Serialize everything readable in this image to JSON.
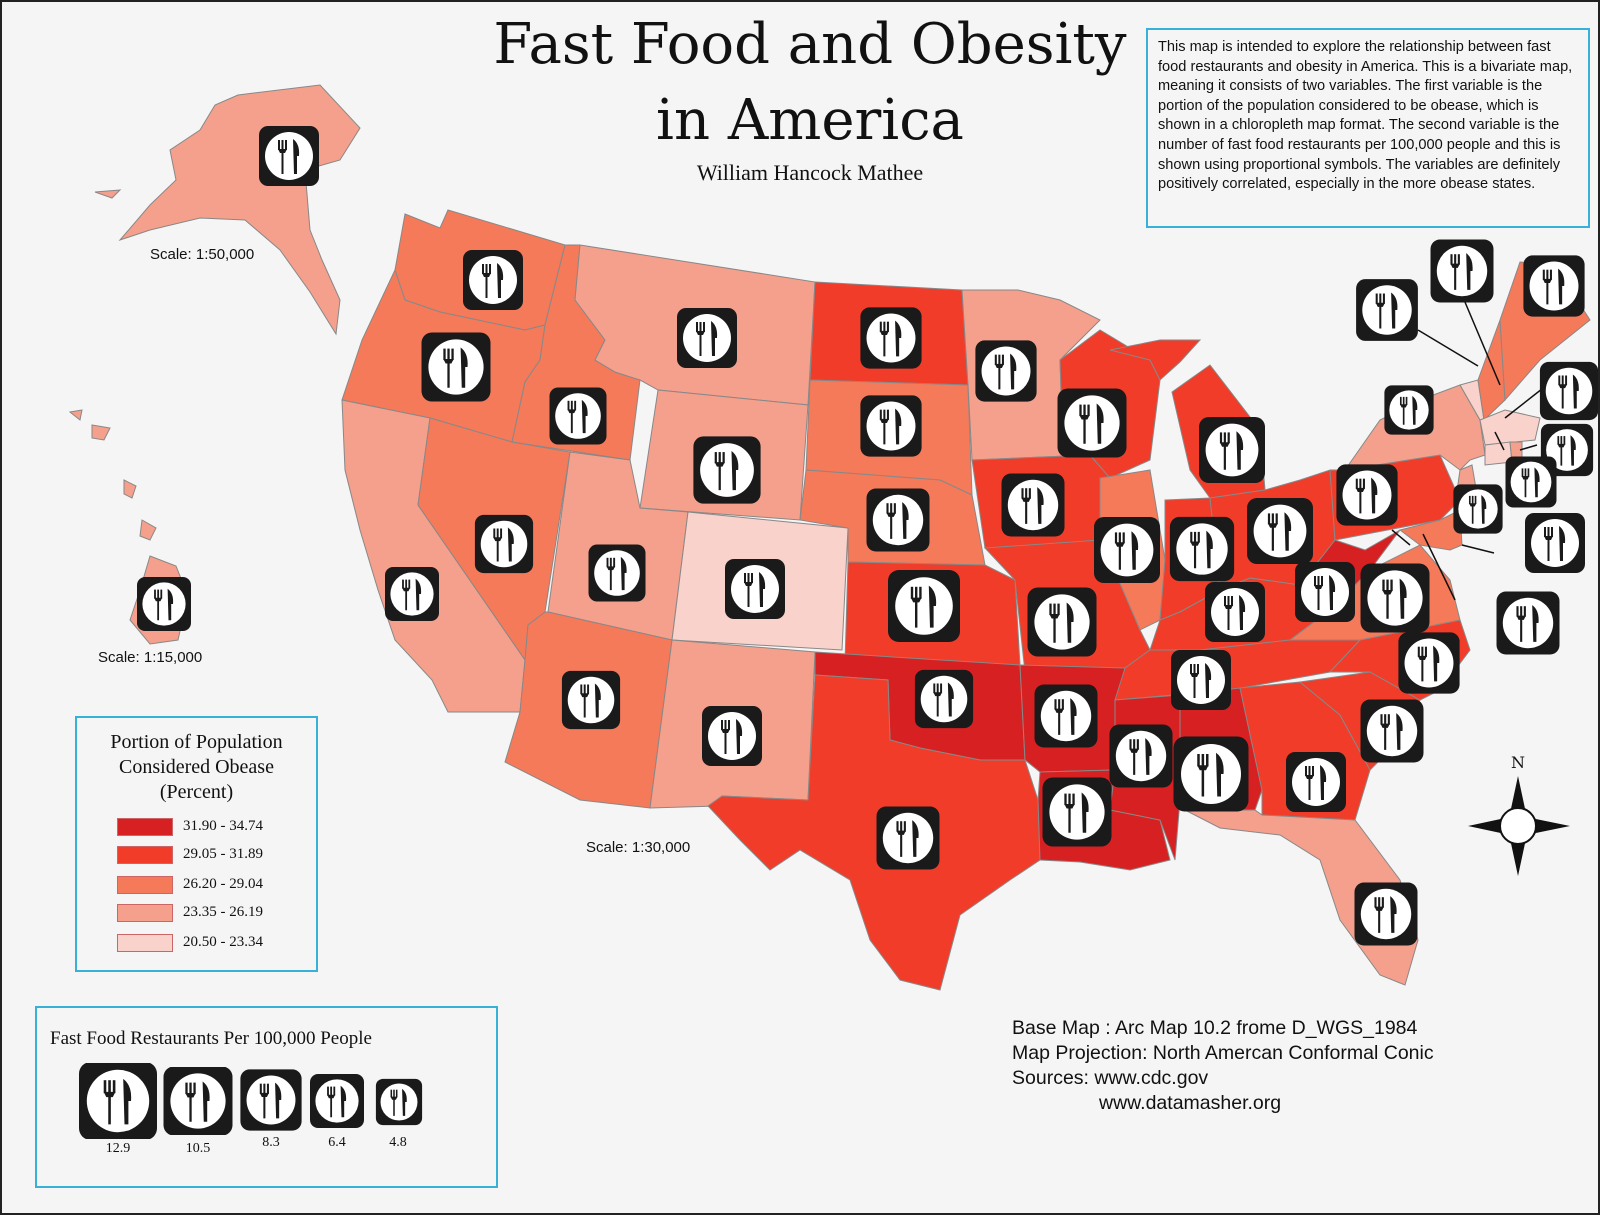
{
  "title": {
    "line1": "Fast Food and Obesity",
    "line2": "in America"
  },
  "author": "William Hancock Mathee",
  "description": "This map is intended to explore the relationship between fast food restaurants and obesity in America.  This is a bivariate map, meaning it consists of two variables.  The first variable is the portion of the population considered to be obease, which is shown in a chloropleth map format.  The second variable is the number of fast food restaurants per 100,000 people and this is shown using proportional symbols.  The variables are definitely positively correlated, especially in the more obease states.",
  "scales": {
    "alaska": "Scale: 1:50,000",
    "hawaii": "Scale: 1:15,000",
    "mainland": "Scale: 1:30,000"
  },
  "legend_obesity": {
    "title_lines": [
      "Portion of Population",
      "Considered Obease",
      "(Percent)"
    ],
    "classes": [
      {
        "label": "31.90 - 34.74",
        "color": "#d72022"
      },
      {
        "label": "29.05 - 31.89",
        "color": "#f03c28"
      },
      {
        "label": "26.20 - 29.04",
        "color": "#f47a5a"
      },
      {
        "label": "23.35 - 26.19",
        "color": "#f4a08c"
      },
      {
        "label": "20.50 - 23.34",
        "color": "#f8d2cb"
      }
    ]
  },
  "legend_fastfood": {
    "title": "Fast Food Restaurants Per 100,000 People",
    "sizes": [
      "12.9",
      "10.5",
      "8.3",
      "6.4",
      "4.8"
    ],
    "icon": "fork-knife-plate-icon"
  },
  "credits": {
    "base_map": "Base Map : Arc Map 10.2 frome D_WGS_1984",
    "projection": "Map Projection: North Amercan Conformal Conic",
    "sources": "Sources: www.cdc.gov",
    "sources2": "www.datamasher.org"
  },
  "compass": {
    "north": "N"
  },
  "states": [
    {
      "name": "Washington",
      "class": 2
    },
    {
      "name": "Oregon",
      "class": 2
    },
    {
      "name": "California",
      "class": 3
    },
    {
      "name": "Idaho",
      "class": 2
    },
    {
      "name": "Nevada",
      "class": 2
    },
    {
      "name": "Montana",
      "class": 3
    },
    {
      "name": "Wyoming",
      "class": 3
    },
    {
      "name": "Utah",
      "class": 3
    },
    {
      "name": "Colorado",
      "class": 4
    },
    {
      "name": "Arizona",
      "class": 2
    },
    {
      "name": "New Mexico",
      "class": 3
    },
    {
      "name": "North Dakota",
      "class": 1
    },
    {
      "name": "South Dakota",
      "class": 2
    },
    {
      "name": "Nebraska",
      "class": 2
    },
    {
      "name": "Kansas",
      "class": 1
    },
    {
      "name": "Oklahoma",
      "class": 0
    },
    {
      "name": "Texas",
      "class": 1
    },
    {
      "name": "Minnesota",
      "class": 3
    },
    {
      "name": "Iowa",
      "class": 1
    },
    {
      "name": "Missouri",
      "class": 1
    },
    {
      "name": "Arkansas",
      "class": 0
    },
    {
      "name": "Louisiana",
      "class": 0
    },
    {
      "name": "Wisconsin",
      "class": 1
    },
    {
      "name": "Illinois",
      "class": 2
    },
    {
      "name": "Michigan",
      "class": 1
    },
    {
      "name": "Indiana",
      "class": 1
    },
    {
      "name": "Ohio",
      "class": 1
    },
    {
      "name": "Kentucky",
      "class": 1
    },
    {
      "name": "Tennessee",
      "class": 1
    },
    {
      "name": "Mississippi",
      "class": 0
    },
    {
      "name": "Alabama",
      "class": 0
    },
    {
      "name": "Georgia",
      "class": 1
    },
    {
      "name": "Florida",
      "class": 3
    },
    {
      "name": "South Carolina",
      "class": 1
    },
    {
      "name": "North Carolina",
      "class": 1
    },
    {
      "name": "Virginia",
      "class": 2
    },
    {
      "name": "West Virginia",
      "class": 0
    },
    {
      "name": "Pennsylvania",
      "class": 1
    },
    {
      "name": "New York",
      "class": 3
    },
    {
      "name": "Maine",
      "class": 2
    },
    {
      "name": "Vermont",
      "class": 4
    },
    {
      "name": "New Hampshire",
      "class": 2
    },
    {
      "name": "Massachusetts",
      "class": 4
    },
    {
      "name": "Connecticut",
      "class": 4
    },
    {
      "name": "Rhode Island",
      "class": 3
    },
    {
      "name": "New Jersey",
      "class": 3
    },
    {
      "name": "Delaware",
      "class": 2
    },
    {
      "name": "Maryland",
      "class": 2
    },
    {
      "name": "Alaska",
      "class": 3
    },
    {
      "name": "Hawaii",
      "class": 3
    }
  ]
}
